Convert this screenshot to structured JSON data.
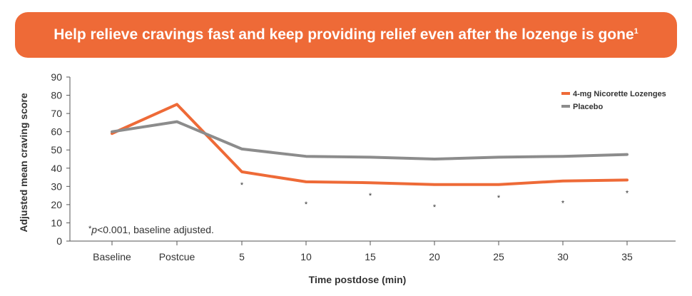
{
  "banner": {
    "title": "Help relieve cravings fast and keep providing relief even after the lozenge is gone",
    "footnote_ref": "1",
    "color": "#ee6a37"
  },
  "footnote": {
    "asterisk": "*",
    "p_symbol": "p",
    "text": "<0.001, baseline adjusted."
  },
  "chart_data": {
    "type": "line",
    "title": "",
    "xlabel": "Time postdose (min)",
    "ylabel": "Adjusted mean craving score",
    "ylim": [
      0,
      90
    ],
    "yticks": [
      0,
      10,
      20,
      30,
      40,
      50,
      60,
      70,
      80,
      90
    ],
    "categories": [
      "Baseline",
      "Postcue",
      "5",
      "10",
      "15",
      "20",
      "25",
      "30",
      "35"
    ],
    "grid": false,
    "legend_position": "top-right",
    "series": [
      {
        "name": "4-mg Nicorette Lozenges",
        "color": "#ee6a37",
        "values": [
          59,
          75,
          38,
          32.5,
          32,
          31,
          31,
          33,
          33.5
        ]
      },
      {
        "name": "Placebo",
        "color": "#8c8c8c",
        "values": [
          60,
          65.5,
          50.5,
          46.5,
          46,
          45,
          46,
          46.5,
          47.5
        ]
      }
    ],
    "significance_marker": "*",
    "significant_categories": [
      "5",
      "10",
      "15",
      "20",
      "25",
      "30",
      "35"
    ]
  }
}
